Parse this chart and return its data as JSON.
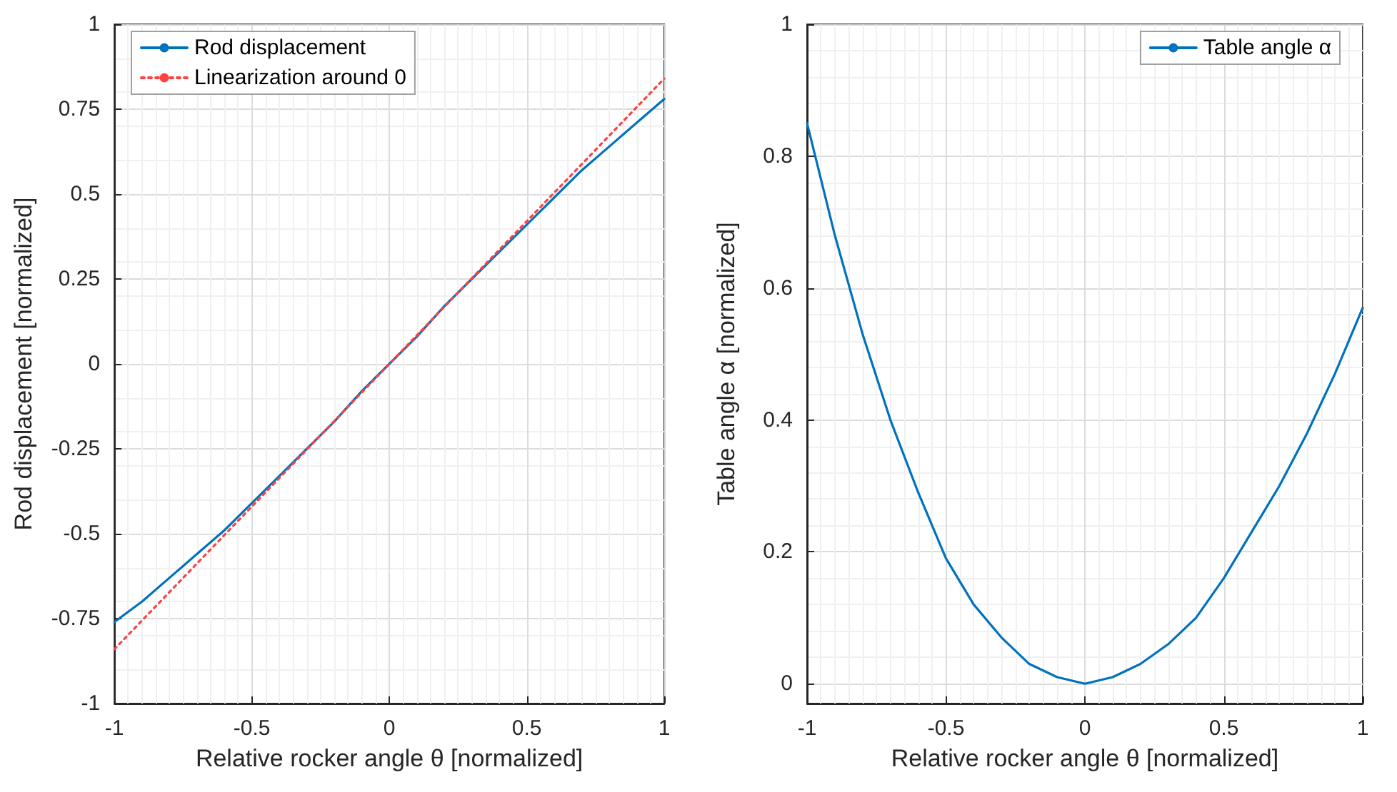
{
  "chart_data": [
    {
      "type": "line",
      "xlabel": "Relative rocker angle θ [normalized]",
      "ylabel": "Rod displacement [normalized]",
      "xlim": [
        -1,
        1
      ],
      "xticks": [
        -1,
        -0.5,
        0,
        0.5,
        1
      ],
      "ylim": [
        -1,
        1
      ],
      "yticks": [
        -1,
        -0.75,
        -0.5,
        -0.25,
        0,
        0.25,
        0.5,
        0.75,
        1
      ],
      "grid": true,
      "legend": "top left",
      "marker": "none",
      "series": [
        {
          "name": "Rod displacement",
          "color": "#0072bd",
          "line_style": "solid",
          "x": [
            -1,
            -0.9,
            -0.8,
            -0.7,
            -0.6,
            -0.5,
            -0.4,
            -0.3,
            -0.2,
            -0.1,
            0,
            0.1,
            0.2,
            0.3,
            0.4,
            0.5,
            0.6,
            0.7,
            0.8,
            0.9,
            1
          ],
          "values": [
            -0.76,
            -0.7,
            -0.63,
            -0.56,
            -0.49,
            -0.41,
            -0.33,
            -0.25,
            -0.17,
            -0.08,
            0,
            0.08,
            0.17,
            0.25,
            0.33,
            0.41,
            0.49,
            0.57,
            0.64,
            0.71,
            0.78
          ]
        },
        {
          "name": "Linearization around 0",
          "color": "#ff4040",
          "line_style": "dotted",
          "x": [
            -1,
            1
          ],
          "values": [
            -0.84,
            0.84
          ]
        }
      ]
    },
    {
      "type": "line",
      "xlabel": "Relative rocker angle θ [normalized]",
      "ylabel": "Table angle α [normalized]",
      "xlim": [
        -1,
        1
      ],
      "xticks": [
        -1,
        -0.5,
        0,
        0.5,
        1
      ],
      "ylim": [
        -0.03,
        1
      ],
      "yticks": [
        0,
        0.2,
        0.4,
        0.6,
        0.8,
        1
      ],
      "grid": true,
      "legend": "top right",
      "marker": "none",
      "series": [
        {
          "name": "Table angle α",
          "color": "#0072bd",
          "line_style": "solid",
          "x": [
            -1,
            -0.9,
            -0.8,
            -0.7,
            -0.6,
            -0.5,
            -0.4,
            -0.3,
            -0.2,
            -0.1,
            0,
            0.1,
            0.2,
            0.3,
            0.4,
            0.5,
            0.6,
            0.7,
            0.8,
            0.9,
            1
          ],
          "values": [
            0.85,
            0.68,
            0.53,
            0.4,
            0.29,
            0.19,
            0.12,
            0.07,
            0.03,
            0.01,
            0,
            0.01,
            0.03,
            0.06,
            0.1,
            0.16,
            0.23,
            0.3,
            0.38,
            0.47,
            0.57
          ]
        }
      ]
    }
  ]
}
